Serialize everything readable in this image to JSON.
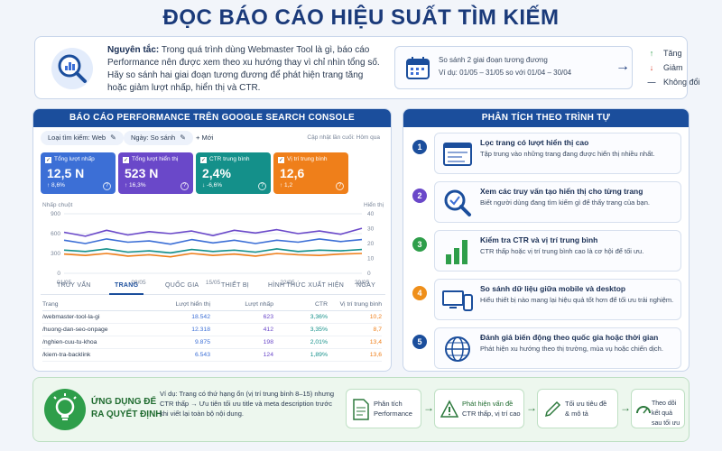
{
  "page": {
    "title": "ĐỌC BÁO CÁO HIỆU SUẤT TÌM KIẾM"
  },
  "principle": {
    "label": "Nguyên tắc:",
    "text": "Trong quá trình dùng Webmaster Tool là gì, báo cáo Performance nên được xem theo xu hướng thay vì chỉ nhìn tổng số. Hãy so sánh hai giai đoạn tương đương để phát hiện trang tăng hoặc giảm lượt nhấp, hiển thị và CTR.",
    "compare_line1": "So sánh 2 giai đoạn tương đương",
    "compare_line2": "Ví dụ: 01/05 – 31/05 so với 01/04 – 30/04",
    "icon": "calendar-icon"
  },
  "legend": [
    {
      "symbol": "↑",
      "label": "Tăng",
      "color": "#2e9e4a"
    },
    {
      "symbol": "↓",
      "label": "Giảm",
      "color": "#d9412f"
    },
    {
      "symbol": "—",
      "label": "Không đổi",
      "color": "#5a6a82"
    }
  ],
  "report": {
    "header": "BÁO CÁO PERFORMANCE TRÊN GOOGLE SEARCH CONSOLE",
    "filter_search": "Loại tìm kiếm: Web",
    "filter_date": "Ngày: So sánh",
    "add_new": "+ Mới",
    "updated": "Cập nhật lần cuối: Hôm qua",
    "metrics": [
      {
        "label": "Tổng lượt nhấp",
        "value": "12,5 N",
        "delta": "↑ 8,6%",
        "color": "#3c6fd6"
      },
      {
        "label": "Tổng lượt hiển thị",
        "value": "523 N",
        "delta": "↑ 16,3%",
        "color": "#6a48c9"
      },
      {
        "label": "CTR trung bình",
        "value": "2,4%",
        "delta": "↓ -6,6%",
        "color": "#14908a"
      },
      {
        "label": "Vị trí trung bình",
        "value": "12,6",
        "delta": "↑ 1,2",
        "color": "#ef7f1a"
      }
    ],
    "tabs": [
      "TRUY VẤN",
      "TRANG",
      "QUỐC GIA",
      "THIẾT BỊ",
      "HÌNH THỨC XUẤT HIỆN",
      "NGÀY"
    ],
    "active_tab": "TRANG",
    "table": {
      "headers": [
        "Trang",
        "Lượt hiển thị",
        "Lượt nhấp",
        "CTR",
        "Vị trí trung bình"
      ],
      "rows": [
        [
          "/webmaster-tool-la-gi",
          "18.542",
          "623",
          "3,36%",
          "10,2"
        ],
        [
          "/huong-dan-seo-onpage",
          "12.318",
          "412",
          "3,35%",
          "8,7"
        ],
        [
          "/nghien-cuu-tu-khoa",
          "9.875",
          "198",
          "2,01%",
          "13,4"
        ],
        [
          "/kiem-tra-backlink",
          "6.543",
          "124",
          "1,89%",
          "13,6"
        ]
      ],
      "value_colors": [
        "#2b3b52",
        "#3c6fd6",
        "#6a48c9",
        "#14908a",
        "#ef7f1a"
      ]
    }
  },
  "chart_data": {
    "type": "line",
    "title": "",
    "xlabel": "",
    "ylabel": "Nhấp chuột",
    "y2label": "Hiển thị",
    "x": [
      "01/05",
      "03/05",
      "05/05",
      "07/05",
      "09/05",
      "11/05",
      "13/05",
      "15/05",
      "17/05",
      "19/05",
      "21/05",
      "23/05",
      "25/05",
      "27/05",
      "29/05"
    ],
    "xticks": [
      "01/05",
      "08/05",
      "15/05",
      "22/05",
      "29/05"
    ],
    "ylim": [
      0,
      900
    ],
    "yticks": [
      0,
      300,
      600,
      900
    ],
    "y2lim": [
      0,
      40
    ],
    "y2ticks": [
      0,
      10,
      20,
      30,
      40
    ],
    "grid": true,
    "series": [
      {
        "values": [
          620,
          560,
          650,
          580,
          630,
          600,
          640,
          570,
          650,
          610,
          660,
          600,
          640,
          590,
          680
        ],
        "color": "#6a48c9"
      },
      {
        "values": [
          500,
          450,
          520,
          470,
          490,
          440,
          510,
          460,
          500,
          450,
          500,
          470,
          520,
          480,
          510
        ],
        "color": "#3c6fd6"
      },
      {
        "values": [
          350,
          330,
          370,
          320,
          340,
          310,
          360,
          330,
          350,
          320,
          370,
          330,
          350,
          340,
          360
        ],
        "color": "#14908a"
      },
      {
        "values": [
          290,
          270,
          300,
          260,
          280,
          250,
          300,
          270,
          290,
          260,
          300,
          280,
          270,
          290,
          300
        ],
        "color": "#ef7f1a"
      }
    ]
  },
  "analysis": {
    "header": "PHÂN TÍCH THEO TRÌNH TỰ",
    "steps": [
      {
        "num": "1",
        "title": "Lọc trang có lượt hiển thị cao",
        "desc": "Tập trung vào những trang đang được hiển thị nhiều nhất.",
        "color": "#1b4e9c",
        "icon": "webpage-icon"
      },
      {
        "num": "2",
        "title": "Xem các truy vấn tạo hiển thị cho từng trang",
        "desc": "Biết người dùng đang tìm kiếm gì để thấy trang của bạn.",
        "color": "#6a48c9",
        "icon": "magnifier-icon"
      },
      {
        "num": "3",
        "title": "Kiểm tra CTR và vị trí trung bình",
        "desc": "CTR thấp hoặc vị trí trung bình cao là cơ hội để tối ưu.",
        "color": "#2e9e4a",
        "icon": "bar-chart-icon"
      },
      {
        "num": "4",
        "title": "So sánh dữ liệu giữa mobile và desktop",
        "desc": "Hiểu thiết bị nào mang lại hiệu quả tốt hơn để tối ưu trải nghiệm.",
        "color": "#ef8f1a",
        "icon": "devices-icon"
      },
      {
        "num": "5",
        "title": "Đánh giá biến động theo quốc gia hoặc thời gian",
        "desc": "Phát hiện xu hướng theo thị trường, mùa vụ hoặc chiến dịch.",
        "color": "#1b4e9c",
        "icon": "globe-icon"
      }
    ]
  },
  "decision": {
    "title_line1": "ỨNG DỤNG ĐỂ",
    "title_line2": "RA QUYẾT ĐỊNH",
    "example": "Ví dụ: Trang có thứ hạng ổn (vị trí trung bình 8–15) nhưng CTR thấp → Ưu tiên tối ưu title và meta description trước khi viết lại toàn bộ nội dung.",
    "flow": [
      {
        "line1": "Phân tích",
        "line2": "Performance",
        "icon": "document-icon"
      },
      {
        "line1": "Phát hiện vấn đề",
        "line2": "CTR thấp, vị trí cao",
        "icon": "warning-icon"
      },
      {
        "line1": "Tối ưu tiêu đề",
        "line2": "& mô tả",
        "icon": "pencil-icon"
      },
      {
        "line1": "Theo dõi kết quả",
        "line2": "sau tối ưu",
        "icon": "dashboard-icon"
      }
    ]
  }
}
